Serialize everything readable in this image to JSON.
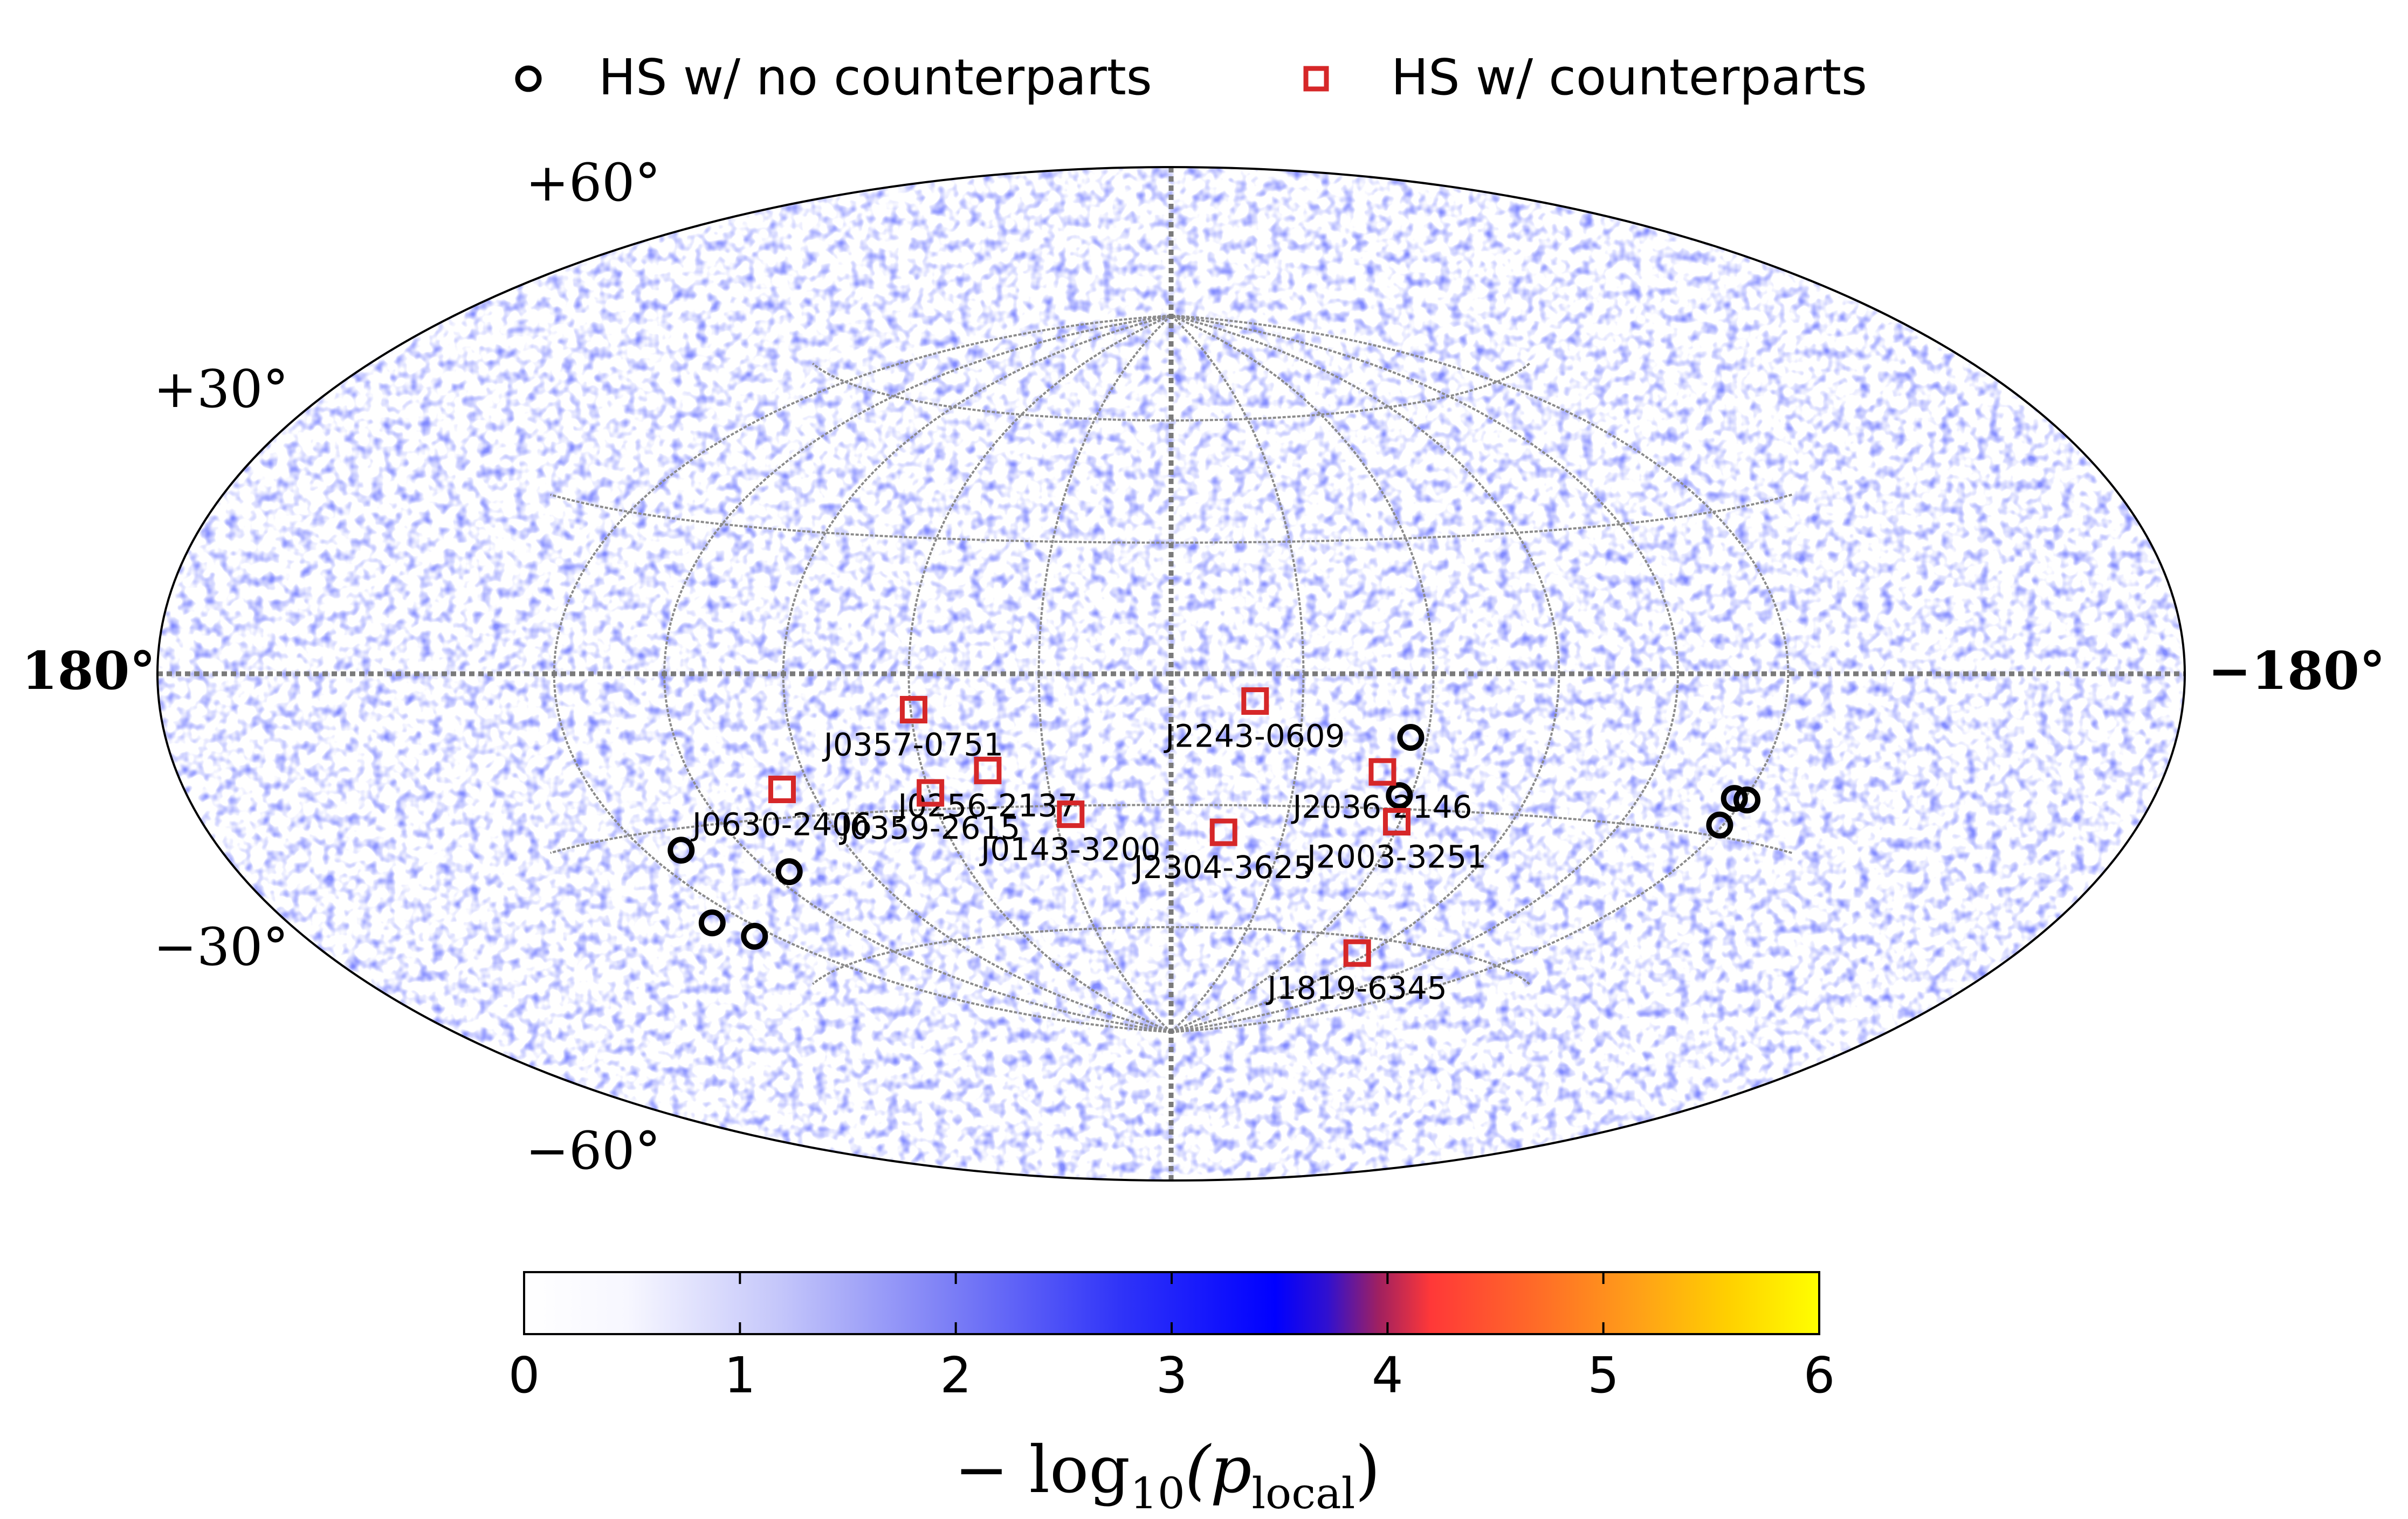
{
  "legend": {
    "no_counterparts_label": "HS w/ no counterparts",
    "counterparts_label": "HS w/ counterparts",
    "no_counterparts_color": "#000000",
    "counterparts_color": "#d62728"
  },
  "chart_data": {
    "type": "scatter",
    "projection": "hammer-aitoff",
    "title": "",
    "xlabel": "",
    "ylabel": "",
    "ra_ticks": [
      "180°",
      "−180°"
    ],
    "dec_ticks": [
      "+60°",
      "+30°",
      "−30°",
      "−60°"
    ],
    "grid": true,
    "legend_position": "top-center",
    "series": [
      {
        "name": "HS w/ no counterparts",
        "marker": "circle",
        "points": [
          {
            "ra": 139,
            "dec": -34
          },
          {
            "ra": 162,
            "dec": -47
          },
          {
            "ra": 157,
            "dec": -51
          },
          {
            "ra": 114,
            "dec": -41
          },
          {
            "ra": -56,
            "dec": -14
          },
          {
            "ra": -57,
            "dec": -27
          },
          {
            "ra": -147,
            "dec": -23
          },
          {
            "ra": -151,
            "dec": -23
          },
          {
            "ra": -149,
            "dec": -28
          }
        ]
      },
      {
        "name": "HS w/ counterparts",
        "marker": "square",
        "points": [
          {
            "label": "J0357-0751",
            "ra": 59.3,
            "dec": -7.85
          },
          {
            "label": "J2243-0609",
            "ra": -19.1,
            "dec": -6.15
          },
          {
            "label": "J0256-2137",
            "ra": 44.1,
            "dec": -21.6
          },
          {
            "label": "J0630-2406",
            "ra": 97.6,
            "dec": -24.1
          },
          {
            "label": "J0359-2615",
            "ra": 59.9,
            "dec": -26.3
          },
          {
            "label": "J0143-3200",
            "ra": 25.8,
            "dec": -32.0
          },
          {
            "label": "J2304-3625",
            "ra": -14.0,
            "dec": -36.4
          },
          {
            "label": "J2036-2146",
            "ra": -51.0,
            "dec": -21.8
          },
          {
            "label": "J2003-3251",
            "ra": -59.1,
            "dec": -32.9
          },
          {
            "label": "J1819-6345",
            "ra": -85.2,
            "dec": -63.8
          }
        ]
      }
    ],
    "colorbar": {
      "label": "−log10(p_local)",
      "label_main": "− log",
      "label_sub1": "10",
      "label_open": "(p",
      "label_sub2": "local",
      "label_close": ")",
      "range": [
        0,
        6
      ],
      "ticks": [
        "0",
        "1",
        "2",
        "3",
        "4",
        "5",
        "6"
      ],
      "colors": [
        "#ffffff",
        "#eef0ff",
        "#a7a9f7",
        "#5a5ef4",
        "#0000ff",
        "#2a10e0",
        "#c02050",
        "#ff3030",
        "#ff8a20",
        "#ffc000",
        "#ffff00"
      ]
    }
  }
}
